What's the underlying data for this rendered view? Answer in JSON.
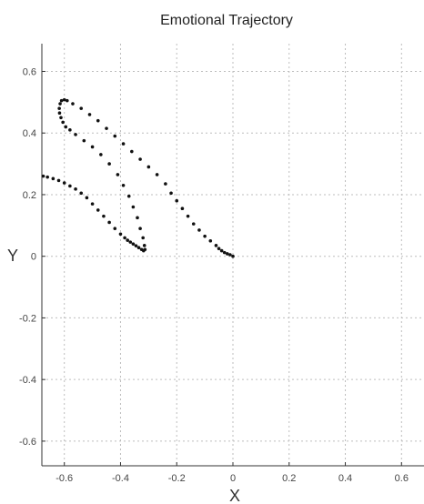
{
  "chart_data": {
    "type": "scatter",
    "title": "Emotional Trajectory",
    "xlabel": "X",
    "ylabel": "Y",
    "xlim": [
      -0.68,
      0.68
    ],
    "ylim": [
      -0.68,
      0.69
    ],
    "grid": true,
    "x_ticks": [
      "-0.6",
      "-0.4",
      "-0.2",
      "0",
      "0.2",
      "0.4",
      "0.6"
    ],
    "y_ticks": [
      "0.6",
      "0.4",
      "0.2",
      "0",
      "-0.2",
      "-0.4",
      "-0.6"
    ],
    "series": [
      {
        "points": [
          [
            0.0,
            0.0
          ],
          [
            -0.01,
            0.005
          ],
          [
            -0.02,
            0.008
          ],
          [
            -0.03,
            0.012
          ],
          [
            -0.04,
            0.018
          ],
          [
            -0.05,
            0.025
          ],
          [
            -0.06,
            0.035
          ],
          [
            -0.08,
            0.05
          ],
          [
            -0.1,
            0.065
          ],
          [
            -0.12,
            0.085
          ],
          [
            -0.14,
            0.105
          ],
          [
            -0.16,
            0.13
          ],
          [
            -0.18,
            0.155
          ],
          [
            -0.2,
            0.18
          ],
          [
            -0.22,
            0.205
          ],
          [
            -0.24,
            0.235
          ],
          [
            -0.27,
            0.265
          ],
          [
            -0.3,
            0.29
          ],
          [
            -0.33,
            0.315
          ],
          [
            -0.36,
            0.34
          ],
          [
            -0.39,
            0.365
          ],
          [
            -0.42,
            0.39
          ],
          [
            -0.45,
            0.415
          ],
          [
            -0.48,
            0.44
          ],
          [
            -0.51,
            0.46
          ],
          [
            -0.54,
            0.48
          ],
          [
            -0.57,
            0.495
          ],
          [
            -0.59,
            0.505
          ],
          [
            -0.6,
            0.508
          ],
          [
            -0.61,
            0.505
          ],
          [
            -0.615,
            0.495
          ],
          [
            -0.618,
            0.48
          ],
          [
            -0.617,
            0.465
          ],
          [
            -0.612,
            0.45
          ],
          [
            -0.605,
            0.435
          ],
          [
            -0.595,
            0.42
          ],
          [
            -0.58,
            0.41
          ],
          [
            -0.56,
            0.395
          ],
          [
            -0.53,
            0.375
          ],
          [
            -0.5,
            0.355
          ],
          [
            -0.47,
            0.33
          ],
          [
            -0.44,
            0.3
          ],
          [
            -0.41,
            0.265
          ],
          [
            -0.39,
            0.23
          ],
          [
            -0.37,
            0.195
          ],
          [
            -0.355,
            0.16
          ],
          [
            -0.34,
            0.125
          ],
          [
            -0.33,
            0.09
          ],
          [
            -0.32,
            0.06
          ],
          [
            -0.315,
            0.035
          ],
          [
            -0.313,
            0.022
          ],
          [
            -0.318,
            0.018
          ],
          [
            -0.325,
            0.022
          ],
          [
            -0.335,
            0.028
          ],
          [
            -0.345,
            0.034
          ],
          [
            -0.355,
            0.04
          ],
          [
            -0.365,
            0.046
          ],
          [
            -0.375,
            0.052
          ],
          [
            -0.385,
            0.06
          ],
          [
            -0.4,
            0.072
          ],
          [
            -0.42,
            0.09
          ],
          [
            -0.44,
            0.11
          ],
          [
            -0.46,
            0.13
          ],
          [
            -0.48,
            0.15
          ],
          [
            -0.5,
            0.17
          ],
          [
            -0.52,
            0.19
          ],
          [
            -0.54,
            0.205
          ],
          [
            -0.56,
            0.218
          ],
          [
            -0.58,
            0.228
          ],
          [
            -0.6,
            0.238
          ],
          [
            -0.62,
            0.246
          ],
          [
            -0.64,
            0.252
          ],
          [
            -0.66,
            0.257
          ],
          [
            -0.675,
            0.26
          ]
        ]
      }
    ]
  }
}
